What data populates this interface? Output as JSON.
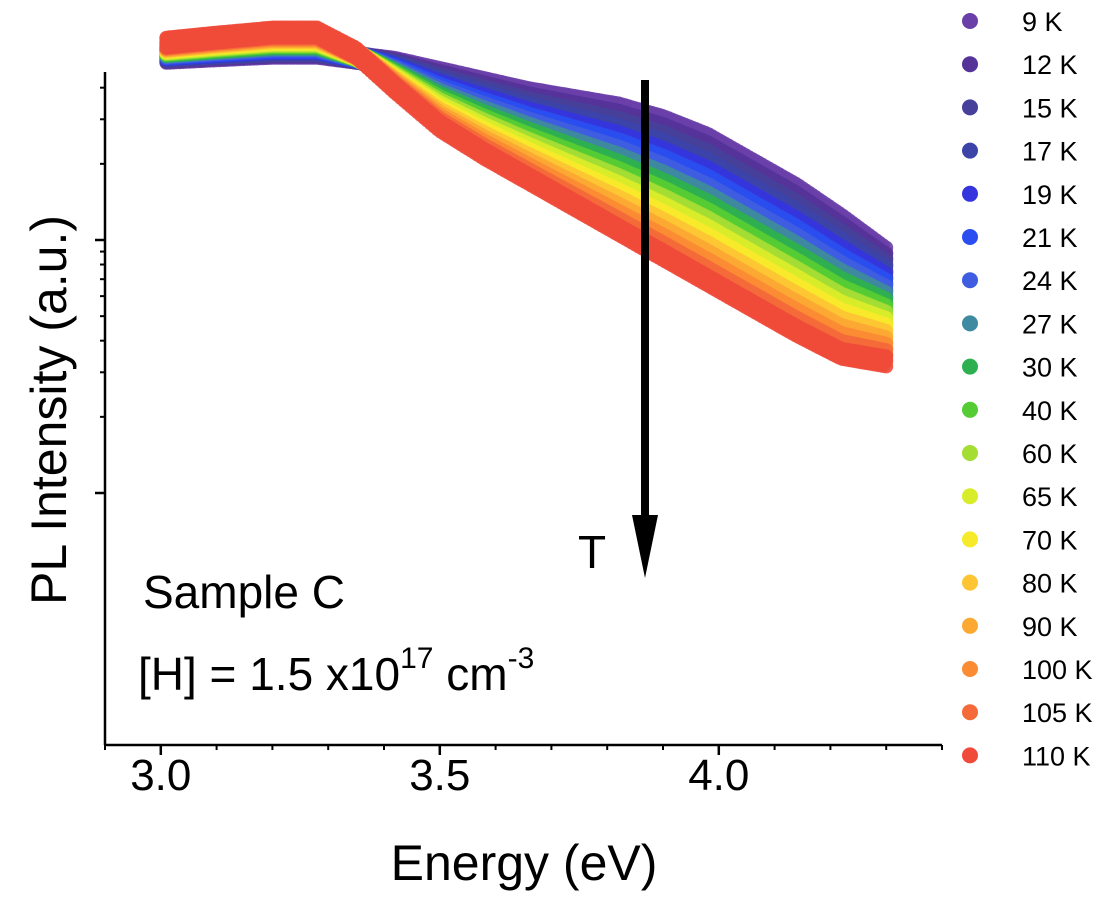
{
  "chart_data": {
    "type": "scatter",
    "title": "",
    "xlabel": "Energy (eV)",
    "ylabel": "PL Intensity (a.u.)",
    "xlim": [
      2.9,
      4.4
    ],
    "x_ticks": [
      3.0,
      3.5,
      4.0
    ],
    "x_tick_labels": [
      "3.0",
      "3.5",
      "4.0"
    ],
    "y_scale": "log",
    "y_tick_labels_shown": false,
    "grid": false,
    "legend_position": "right",
    "annotations": {
      "sample": "Sample C",
      "hydrogen_prefix": "[H] = 1.5 x10",
      "hydrogen_exponent": "17",
      "unit_prefix": " cm",
      "unit_exponent": "-3",
      "arrow_label": "T",
      "arrow_direction": "down"
    },
    "series": [
      {
        "name": "9 K",
        "color": "#6a3fa8"
      },
      {
        "name": "12 K",
        "color": "#553399"
      },
      {
        "name": "15 K",
        "color": "#47409a"
      },
      {
        "name": "17 K",
        "color": "#3c44a8"
      },
      {
        "name": "19 K",
        "color": "#3535dd"
      },
      {
        "name": "21 K",
        "color": "#2a4ef0"
      },
      {
        "name": "24 K",
        "color": "#3f5de0"
      },
      {
        "name": "27 K",
        "color": "#3e8aa0"
      },
      {
        "name": "30 K",
        "color": "#2fb050"
      },
      {
        "name": "40 K",
        "color": "#55cc33"
      },
      {
        "name": "60 K",
        "color": "#a4dd33"
      },
      {
        "name": "65 K",
        "color": "#d8ec2a"
      },
      {
        "name": "70 K",
        "color": "#f7ea2a"
      },
      {
        "name": "80 K",
        "color": "#fdc533"
      },
      {
        "name": "90 K",
        "color": "#fca933"
      },
      {
        "name": "100 K",
        "color": "#fb8c33"
      },
      {
        "name": "105 K",
        "color": "#f46a3a"
      },
      {
        "name": "110 K",
        "color": "#f04a3a"
      }
    ],
    "curve_shape": {
      "x": [
        3.01,
        3.1,
        3.2,
        3.28,
        3.35,
        3.42,
        3.5,
        3.58,
        3.66,
        3.74,
        3.82,
        3.9,
        3.98,
        4.06,
        4.14,
        4.22,
        4.3
      ],
      "low_T": [
        0.72,
        0.73,
        0.74,
        0.74,
        0.72,
        0.7,
        0.66,
        0.62,
        0.58,
        0.55,
        0.52,
        0.47,
        0.4,
        0.3,
        0.2,
        0.08,
        -0.05
      ],
      "high_T": [
        0.78,
        0.8,
        0.82,
        0.82,
        0.74,
        0.6,
        0.45,
        0.34,
        0.24,
        0.14,
        0.04,
        -0.06,
        -0.16,
        -0.26,
        -0.36,
        -0.45,
        -0.48
      ]
    }
  }
}
